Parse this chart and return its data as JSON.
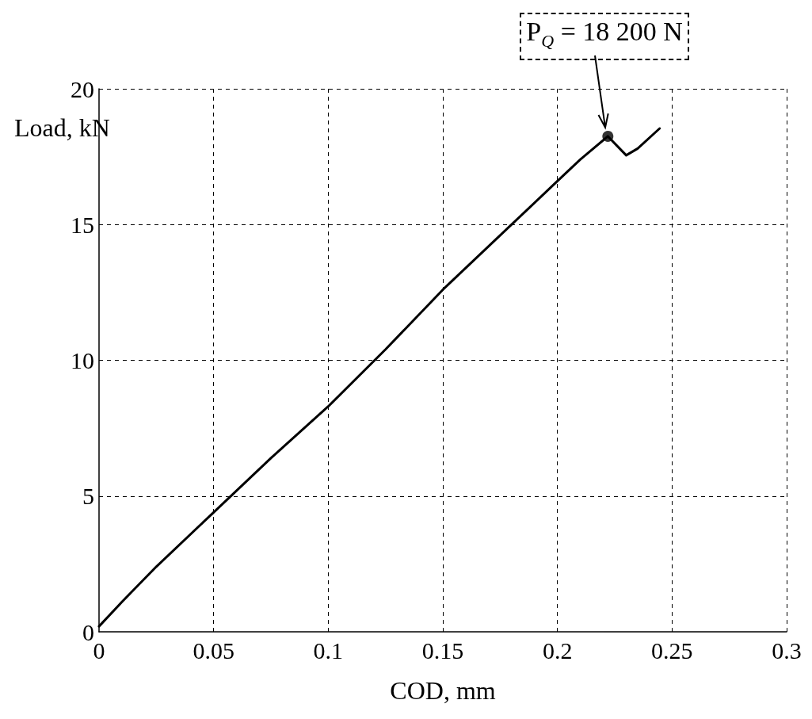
{
  "chart_data": {
    "type": "line",
    "xlabel": "COD, mm",
    "ylabel": "Load, kN",
    "series": [
      {
        "type": "line",
        "color": "#000000",
        "marker": "none",
        "line_style": "solid",
        "x": [
          0,
          0.01,
          0.025,
          0.05,
          0.075,
          0.1,
          0.125,
          0.15,
          0.175,
          0.2,
          0.21,
          0.222,
          0.23,
          0.235,
          0.2446
        ],
        "values": [
          0.2,
          1.1,
          2.4,
          4.4,
          6.4,
          8.3,
          10.4,
          12.6,
          14.6,
          16.6,
          17.4,
          18.25,
          17.55,
          17.8,
          18.54
        ]
      },
      {
        "type": "scatter",
        "color": "#000000",
        "marker": "circle",
        "x": [
          0.222
        ],
        "values": [
          18.25
        ]
      }
    ],
    "annotations": [
      "P$_{Q}$ = 18 200 N"
    ],
    "xlim": [
      0,
      0.3
    ],
    "xticks": [
      0,
      0.05,
      0.1,
      0.15,
      0.2,
      0.25,
      0.3
    ],
    "ylim": [
      0,
      20
    ],
    "yticks": [
      0,
      5,
      10,
      15,
      20
    ],
    "grid": true
  }
}
